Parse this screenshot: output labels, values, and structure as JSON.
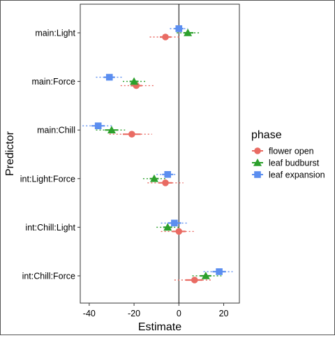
{
  "chart_data": {
    "type": "scatter",
    "title": "",
    "xlabel": "Estimate",
    "ylabel": "Predictor",
    "xlim": [
      -44,
      27
    ],
    "xticks": [
      -40,
      -20,
      0,
      20
    ],
    "xtick_labels": [
      "-40",
      "-20",
      "0",
      "20"
    ],
    "reference_line_x": 0,
    "grid": false,
    "legend_position": "right",
    "categories": [
      "main:Light",
      "main:Force",
      "main:Chill",
      "int:Light:Force",
      "int:Chill:Light",
      "int:Chill:Force"
    ],
    "legend": {
      "title": "phase",
      "entries": [
        "flower open",
        "leaf budburst",
        "leaf expansion"
      ]
    },
    "series": [
      {
        "name": "flower open",
        "color": "#e96b63",
        "marker": "circle",
        "values": [
          -6,
          -19,
          -21,
          -6,
          0,
          7
        ],
        "inner_ci": [
          [
            -8.5,
            -3.5
          ],
          [
            -21.5,
            -16.5
          ],
          [
            -25,
            -17
          ],
          [
            -9,
            -3
          ],
          [
            -3,
            3
          ],
          [
            3,
            10.5
          ]
        ],
        "outer_ci": [
          [
            -13,
            1
          ],
          [
            -26,
            -11
          ],
          [
            -31,
            -12
          ],
          [
            -14,
            2
          ],
          [
            -8,
            7
          ],
          [
            -2,
            15
          ]
        ]
      },
      {
        "name": "leaf budburst",
        "color": "#2ca02c",
        "marker": "triangle",
        "values": [
          4,
          -20,
          -30,
          -11,
          -5,
          12
        ],
        "inner_ci": [
          [
            2,
            6.5
          ],
          [
            -22,
            -18
          ],
          [
            -33,
            -27
          ],
          [
            -13,
            -9
          ],
          [
            -7,
            -3
          ],
          [
            9.5,
            14.5
          ]
        ],
        "outer_ci": [
          [
            -1,
            9
          ],
          [
            -25,
            -15
          ],
          [
            -37,
            -24
          ],
          [
            -16,
            -6
          ],
          [
            -10,
            0
          ],
          [
            6,
            19
          ]
        ]
      },
      {
        "name": "leaf expansion",
        "color": "#5b8ef0",
        "marker": "square",
        "values": [
          0,
          -31,
          -36,
          -5,
          -2,
          18
        ],
        "inner_ci": [
          [
            -2,
            2
          ],
          [
            -33.5,
            -28.5
          ],
          [
            -39,
            -33
          ],
          [
            -7.5,
            -2.5
          ],
          [
            -5,
            1
          ],
          [
            15,
            21
          ]
        ],
        "outer_ci": [
          [
            -4,
            4
          ],
          [
            -37,
            -25
          ],
          [
            -43,
            -29
          ],
          [
            -10,
            -1
          ],
          [
            -8,
            4
          ],
          [
            11,
            24
          ]
        ]
      }
    ]
  }
}
